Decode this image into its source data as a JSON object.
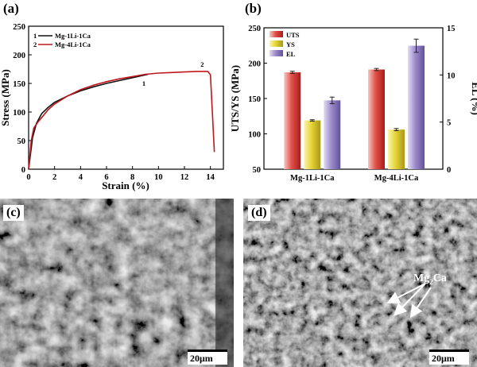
{
  "panel_labels": {
    "a": "(a)",
    "b": "(b)",
    "c": "(c)",
    "d": "(d)"
  },
  "chart_data": [
    {
      "type": "line",
      "xlabel": "Strain (%)",
      "ylabel": "Stress (MPa)",
      "xlim": [
        0,
        15
      ],
      "ylim": [
        0,
        250
      ],
      "xticks": [
        "0",
        "2",
        "4",
        "6",
        "8",
        "10",
        "12",
        "14"
      ],
      "yticks": [
        "0",
        "50",
        "100",
        "150",
        "200",
        "250"
      ],
      "legend_position": "top-left",
      "series": [
        {
          "name": "Mg-1Li-1Ca",
          "legend_marker": "1",
          "curve_label": "1",
          "color": "#111111",
          "x": [
            0,
            0.3,
            0.6,
            1.0,
            1.5,
            2.0,
            3.0,
            4.0,
            5.0,
            6.0,
            7.0,
            8.0,
            9.0,
            9.2
          ],
          "y": [
            0,
            55,
            80,
            97,
            108,
            117,
            128,
            137,
            144,
            150,
            155,
            160,
            165,
            166
          ]
        },
        {
          "name": "Mg-4Li-1Ca",
          "legend_marker": "2",
          "curve_label": "2",
          "color": "#c0161d",
          "x": [
            0,
            0.2,
            0.4,
            0.7,
            1.0,
            1.5,
            2.0,
            3.0,
            4.0,
            5.0,
            6.0,
            7.0,
            8.0,
            9.0,
            10.0,
            11.0,
            12.0,
            13.0,
            13.8,
            14.0,
            14.15,
            14.3
          ],
          "y": [
            0,
            50,
            72,
            82,
            90,
            104,
            114,
            128,
            139,
            147,
            153,
            158,
            162,
            166,
            168,
            169,
            170,
            171,
            171,
            165,
            100,
            30
          ]
        }
      ]
    },
    {
      "type": "bar",
      "categories": [
        "Mg-1Li-1Ca",
        "Mg-4Li-1Ca"
      ],
      "ylabel": "UTS/YS (MPa)",
      "y2label": "EL (%)",
      "ylim": [
        50,
        250
      ],
      "y2lim": [
        0,
        15
      ],
      "yticks": [
        "50",
        "100",
        "150",
        "200",
        "250"
      ],
      "y2ticks": [
        "0",
        "5",
        "10",
        "15"
      ],
      "legend_position": "top-left",
      "series": [
        {
          "name": "UTS",
          "axis": "left",
          "color": "#d9443c",
          "values": [
            187,
            191
          ],
          "errors": [
            1.5,
            1.5
          ]
        },
        {
          "name": "YS",
          "axis": "left",
          "color": "#e3d32a",
          "values": [
            119,
            106
          ],
          "errors": [
            1,
            1.5
          ]
        },
        {
          "name": "EL",
          "axis": "right",
          "color": "#9a87c9",
          "values": [
            7.3,
            13.1
          ],
          "errors": [
            0.35,
            0.7
          ]
        }
      ]
    }
  ],
  "micrographs": [
    {
      "scale_bar": "20μm"
    },
    {
      "scale_bar": "20μm",
      "annotation_main": "Mg",
      "annotation_sub": "2",
      "annotation_tail": "Ca"
    }
  ],
  "colors": {
    "curve1": "#111111",
    "curve2": "#c0161d",
    "uts": "#d9443c",
    "ys": "#e3d32a",
    "el": "#9a87c9"
  }
}
